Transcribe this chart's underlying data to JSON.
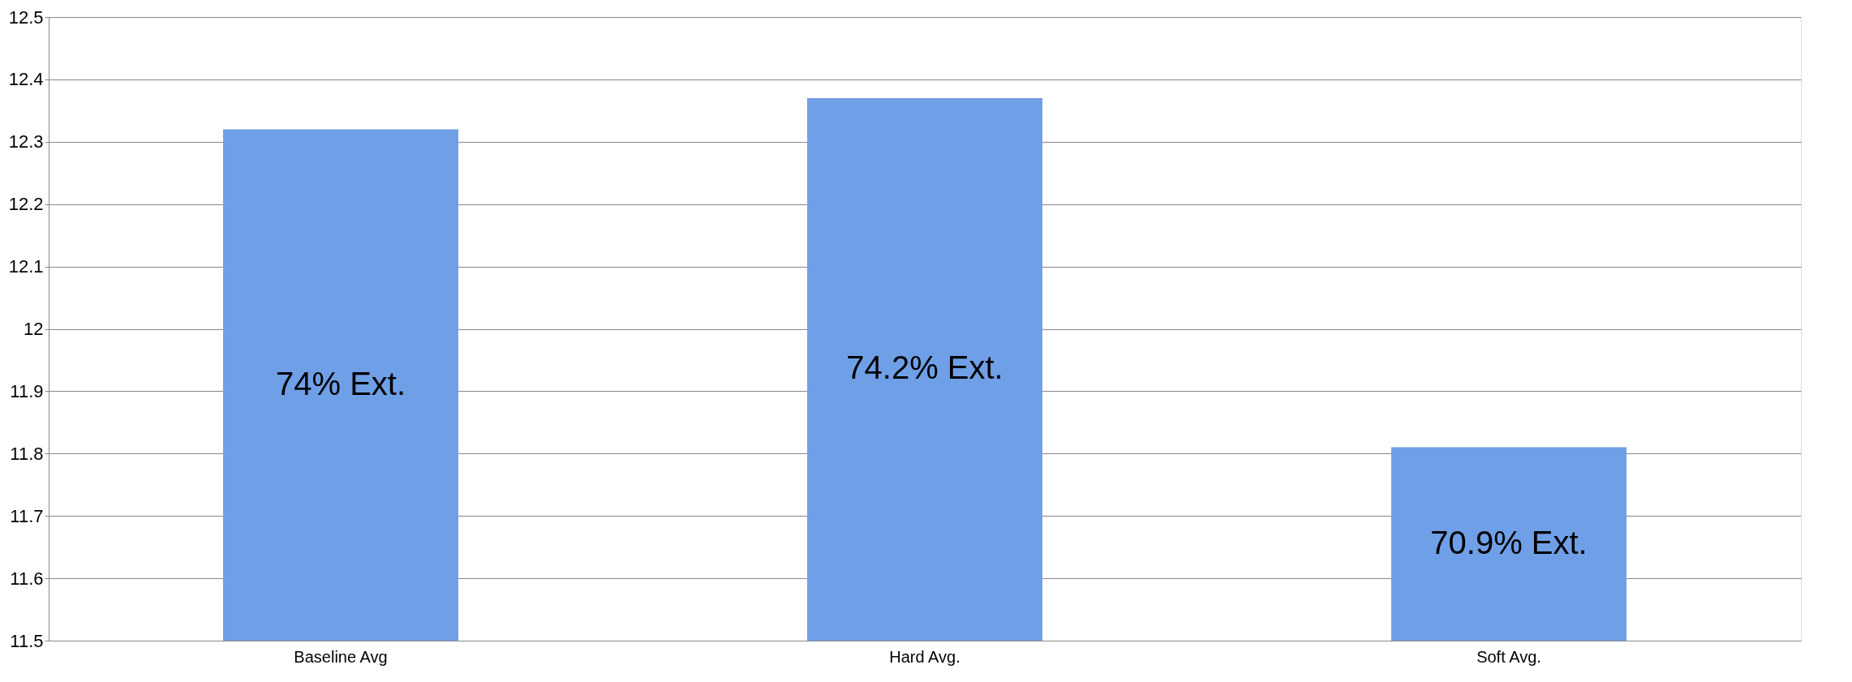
{
  "chart_data": {
    "type": "bar",
    "categories": [
      "Baseline Avg",
      "Hard Avg.",
      "Soft Avg."
    ],
    "values": [
      12.32,
      12.37,
      11.81
    ],
    "color": "#6f9fe6",
    "ylim": [
      11.5,
      12.5
    ],
    "yticks": [
      11.5,
      11.6,
      11.7,
      11.8,
      11.9,
      12,
      12.1,
      12.2,
      12.3,
      12.4,
      12.5
    ],
    "grid": "y",
    "annotations": [
      "74% Ext.",
      "74.2% Ext.",
      "70.9% Ext."
    ]
  }
}
